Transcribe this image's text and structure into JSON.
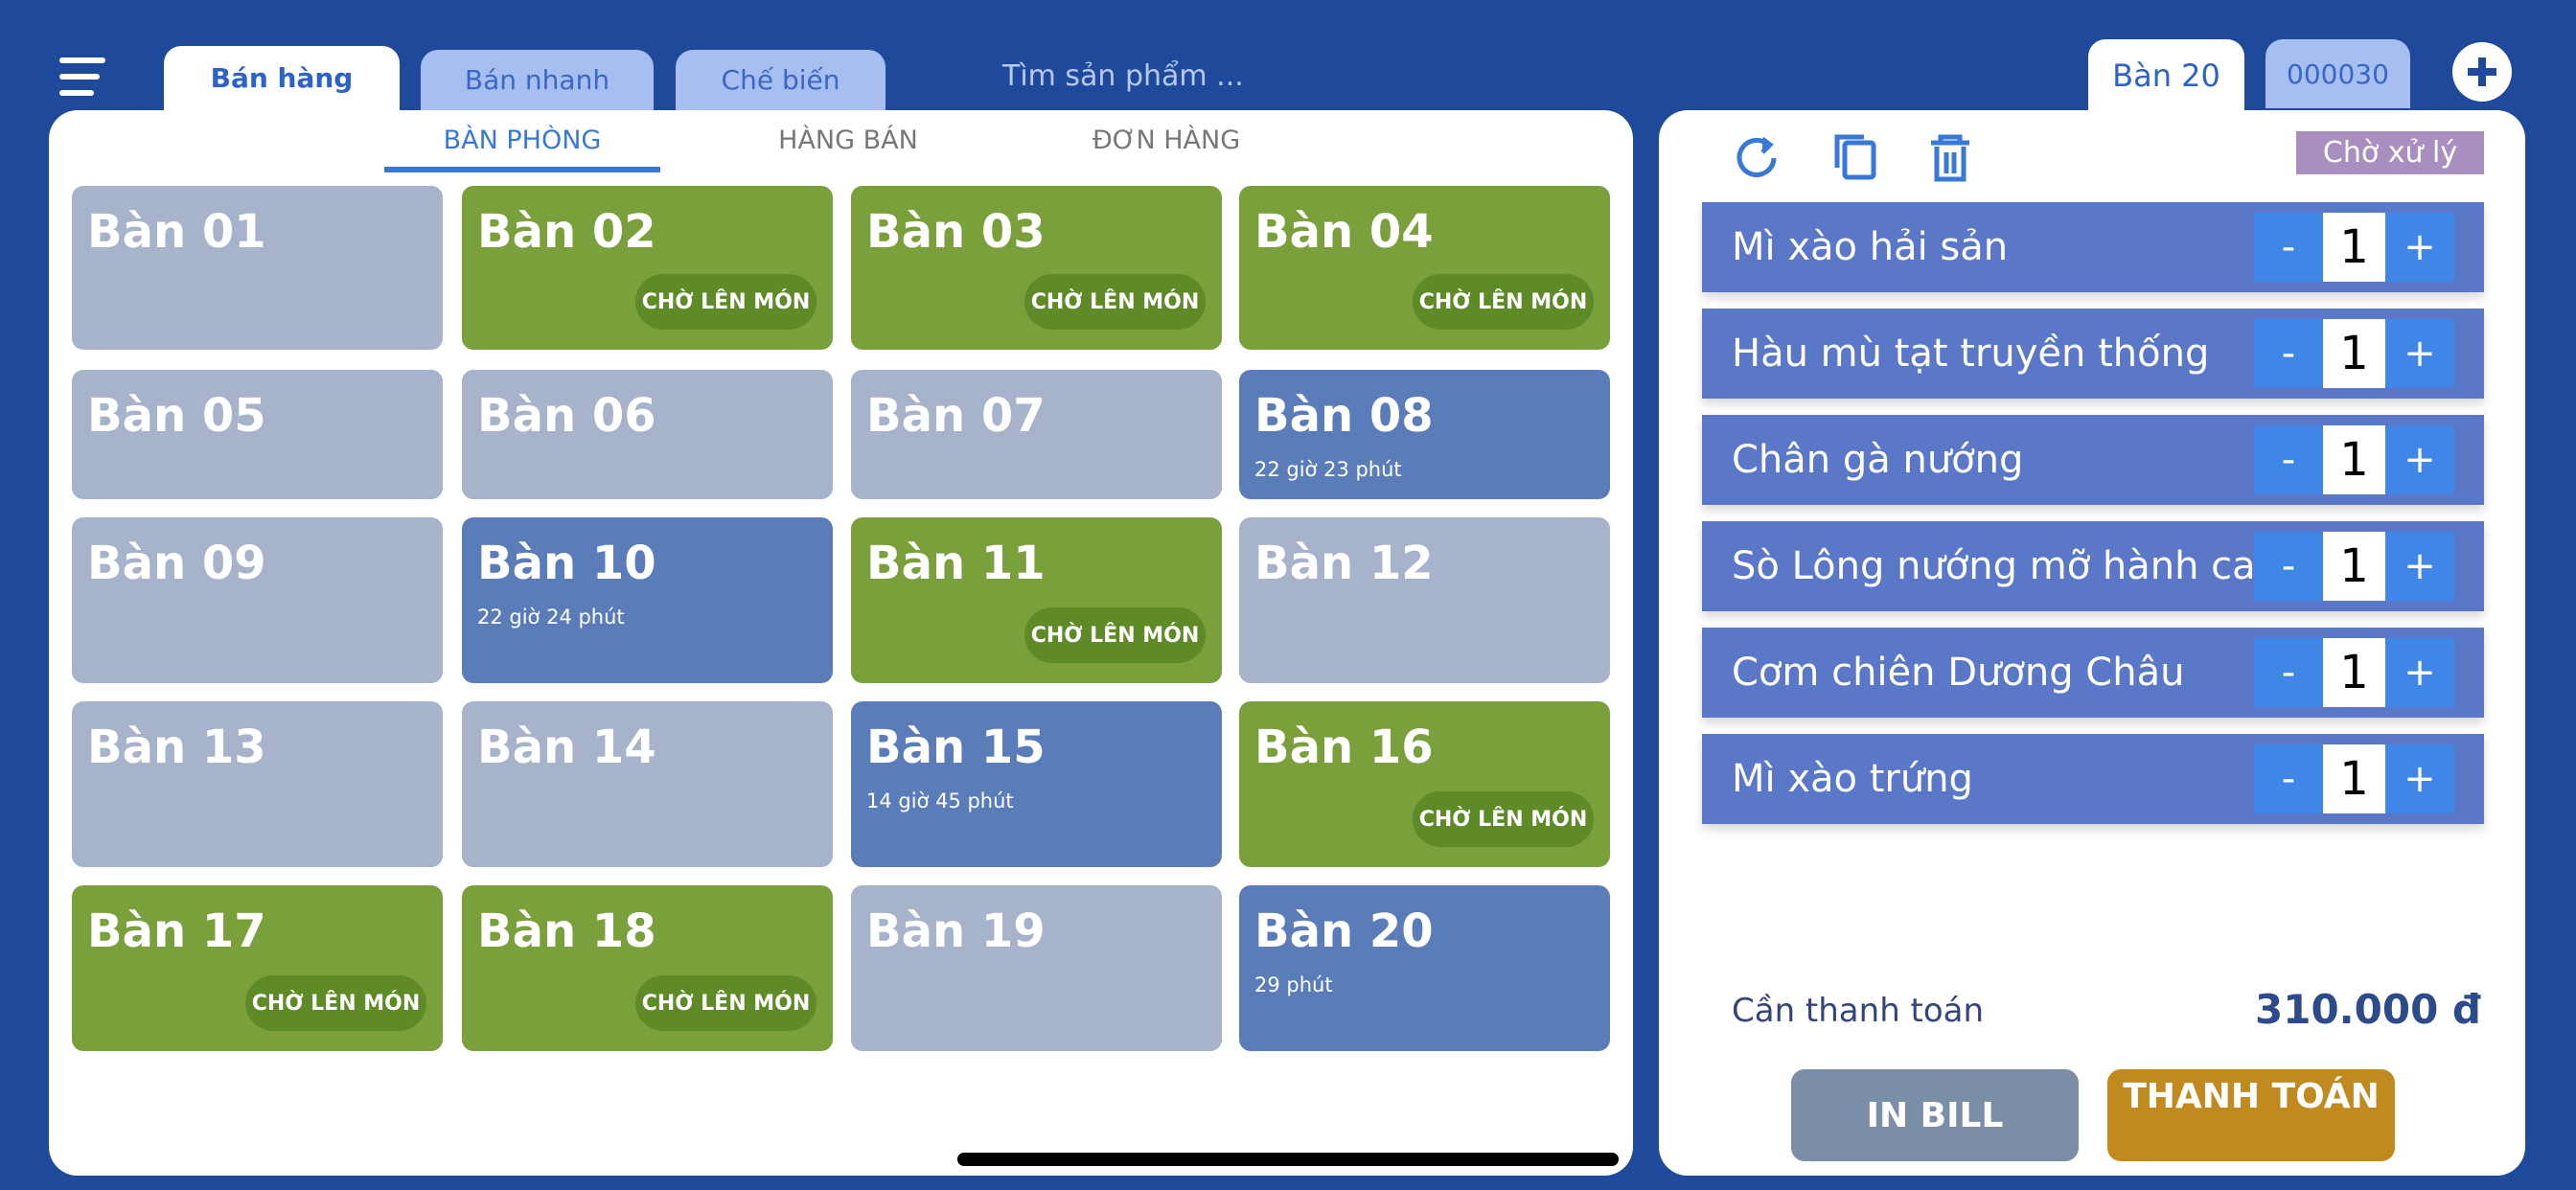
{
  "header": {
    "tabs": [
      "Bán hàng",
      "Bán nhanh",
      "Chế biến"
    ],
    "search": "Tìm sản phẩm ...",
    "table_tab": "Bàn 20",
    "order_tab": "000030"
  },
  "subtabs": [
    "BÀN PHÒNG",
    "HÀNG BÁN",
    "ĐƠN HÀNG"
  ],
  "tables": [
    {
      "name": "Bàn 01",
      "state": "empty"
    },
    {
      "name": "Bàn 02",
      "state": "waiting",
      "badge": "CHỜ LÊN MÓN"
    },
    {
      "name": "Bàn 03",
      "state": "waiting",
      "badge": "CHỜ LÊN MÓN"
    },
    {
      "name": "Bàn 04",
      "state": "waiting",
      "badge": "CHỜ LÊN MÓN"
    },
    {
      "name": "Bàn 05",
      "state": "empty"
    },
    {
      "name": "Bàn 06",
      "state": "empty"
    },
    {
      "name": "Bàn 07",
      "state": "empty"
    },
    {
      "name": "Bàn 08",
      "state": "occupied",
      "time": "22 giờ 23 phút"
    },
    {
      "name": "Bàn 09",
      "state": "empty"
    },
    {
      "name": "Bàn 10",
      "state": "occupied",
      "time": "22 giờ 24 phút"
    },
    {
      "name": "Bàn 11",
      "state": "waiting",
      "badge": "CHỜ LÊN MÓN"
    },
    {
      "name": "Bàn 12",
      "state": "empty"
    },
    {
      "name": "Bàn 13",
      "state": "empty"
    },
    {
      "name": "Bàn 14",
      "state": "empty"
    },
    {
      "name": "Bàn 15",
      "state": "occupied",
      "time": "14 giờ 45 phút"
    },
    {
      "name": "Bàn 16",
      "state": "waiting",
      "badge": "CHỜ LÊN MÓN"
    },
    {
      "name": "Bàn 17",
      "state": "waiting",
      "badge": "CHỜ LÊN MÓN"
    },
    {
      "name": "Bàn 18",
      "state": "waiting",
      "badge": "CHỜ LÊN MÓN"
    },
    {
      "name": "Bàn 19",
      "state": "empty"
    },
    {
      "name": "Bàn 20",
      "state": "occupied",
      "time": "29 phút"
    }
  ],
  "order": {
    "status": "Chờ xử lý",
    "controls": {
      "minus": "-",
      "plus": "+"
    },
    "items": [
      {
        "name": "Mì xào hải sản",
        "qty": 1
      },
      {
        "name": "Hàu mù tạt truyền thống",
        "qty": 1
      },
      {
        "name": "Chân gà nướng",
        "qty": 1
      },
      {
        "name": "Sò Lông nướng mỡ hành cay",
        "qty": 1
      },
      {
        "name": "Cơm chiên Dương Châu",
        "qty": 1
      },
      {
        "name": "Mì xào trứng",
        "qty": 1
      }
    ],
    "total_label": "Cần thanh toán",
    "total": "310.000 đ",
    "buttons": [
      "IN BILL",
      "THANH TOÁN"
    ]
  }
}
